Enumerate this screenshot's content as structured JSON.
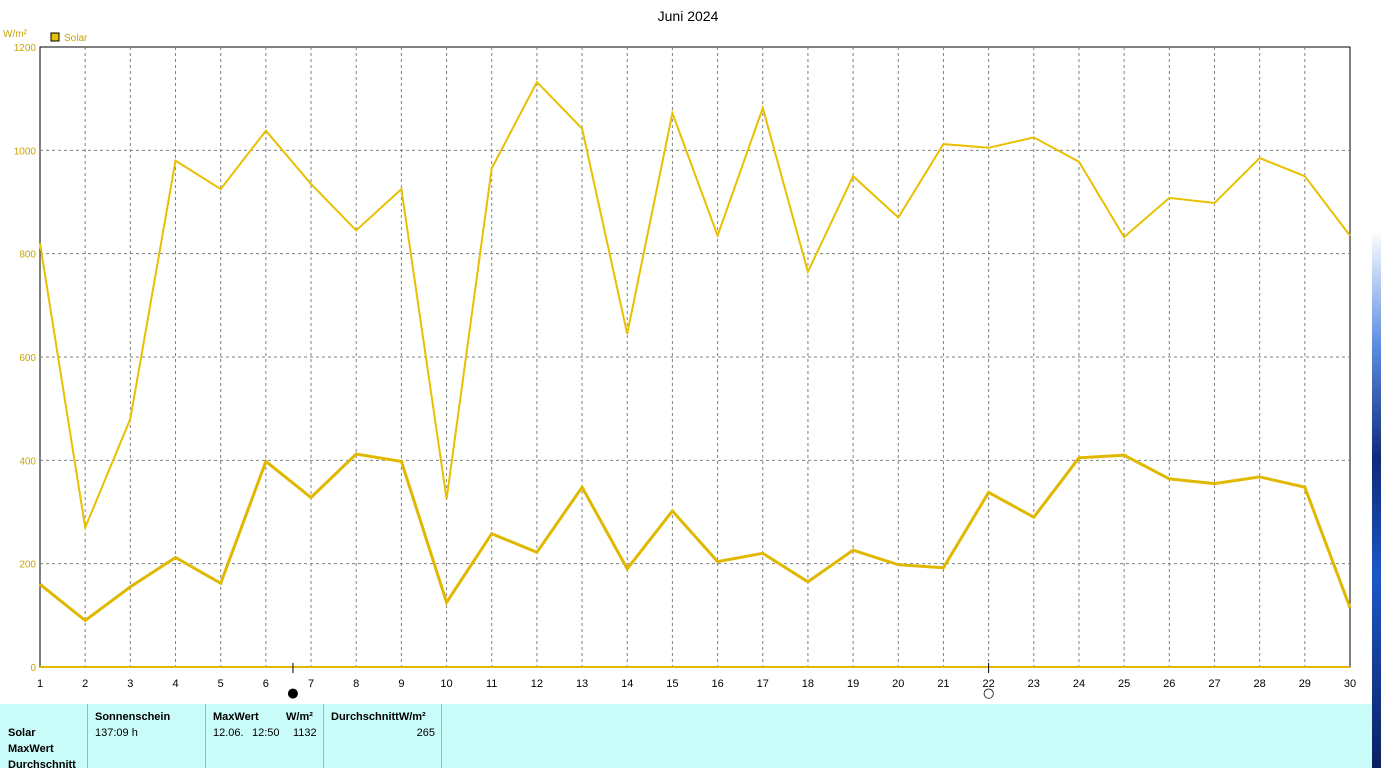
{
  "chart_data": {
    "type": "line",
    "title": "Juni 2024",
    "ylabel": "W/m²",
    "legend": {
      "label": "Solar",
      "color": "#e8c000",
      "placement": "top-left"
    },
    "ylim": [
      0,
      1200
    ],
    "yticks": [
      "0",
      "200",
      "400",
      "600",
      "800",
      "1000",
      "1200"
    ],
    "x": [
      "1",
      "2",
      "3",
      "4",
      "5",
      "6",
      "7",
      "8",
      "9",
      "10",
      "11",
      "12",
      "13",
      "14",
      "15",
      "16",
      "17",
      "18",
      "19",
      "20",
      "21",
      "22",
      "23",
      "24",
      "25",
      "26",
      "27",
      "28",
      "29",
      "30"
    ],
    "grid": true,
    "series": [
      {
        "name": "MaxWert",
        "color": "#e8c000",
        "values": [
          820,
          270,
          480,
          980,
          925,
          1038,
          935,
          845,
          925,
          325,
          965,
          1132,
          1042,
          645,
          1072,
          835,
          1082,
          765,
          950,
          870,
          1012,
          1005,
          1025,
          978,
          832,
          908,
          898,
          985,
          950,
          835
        ]
      },
      {
        "name": "Durchschnitt",
        "color": "#e0b800",
        "values": [
          160,
          90,
          155,
          212,
          162,
          398,
          328,
          412,
          398,
          125,
          258,
          222,
          348,
          190,
          302,
          204,
          220,
          165,
          226,
          198,
          192,
          338,
          290,
          405,
          410,
          364,
          355,
          368,
          348,
          115
        ]
      }
    ],
    "moon_phases": [
      {
        "day": 6.6,
        "symbol": "●"
      },
      {
        "day": 22,
        "symbol": "○"
      }
    ]
  },
  "stats": {
    "row_labels": [
      "Solar",
      "MaxWert",
      "Durchschnitt"
    ],
    "sonnenschein": {
      "header": "Sonnenschein",
      "value": "137:09 h"
    },
    "maxwert": {
      "header": "MaxWert",
      "unit": "W/m²",
      "date": "12.06.",
      "time": "12:50",
      "value": "1132"
    },
    "durchschnitt": {
      "header": "DurchschnittW/m²",
      "value": "265"
    }
  }
}
